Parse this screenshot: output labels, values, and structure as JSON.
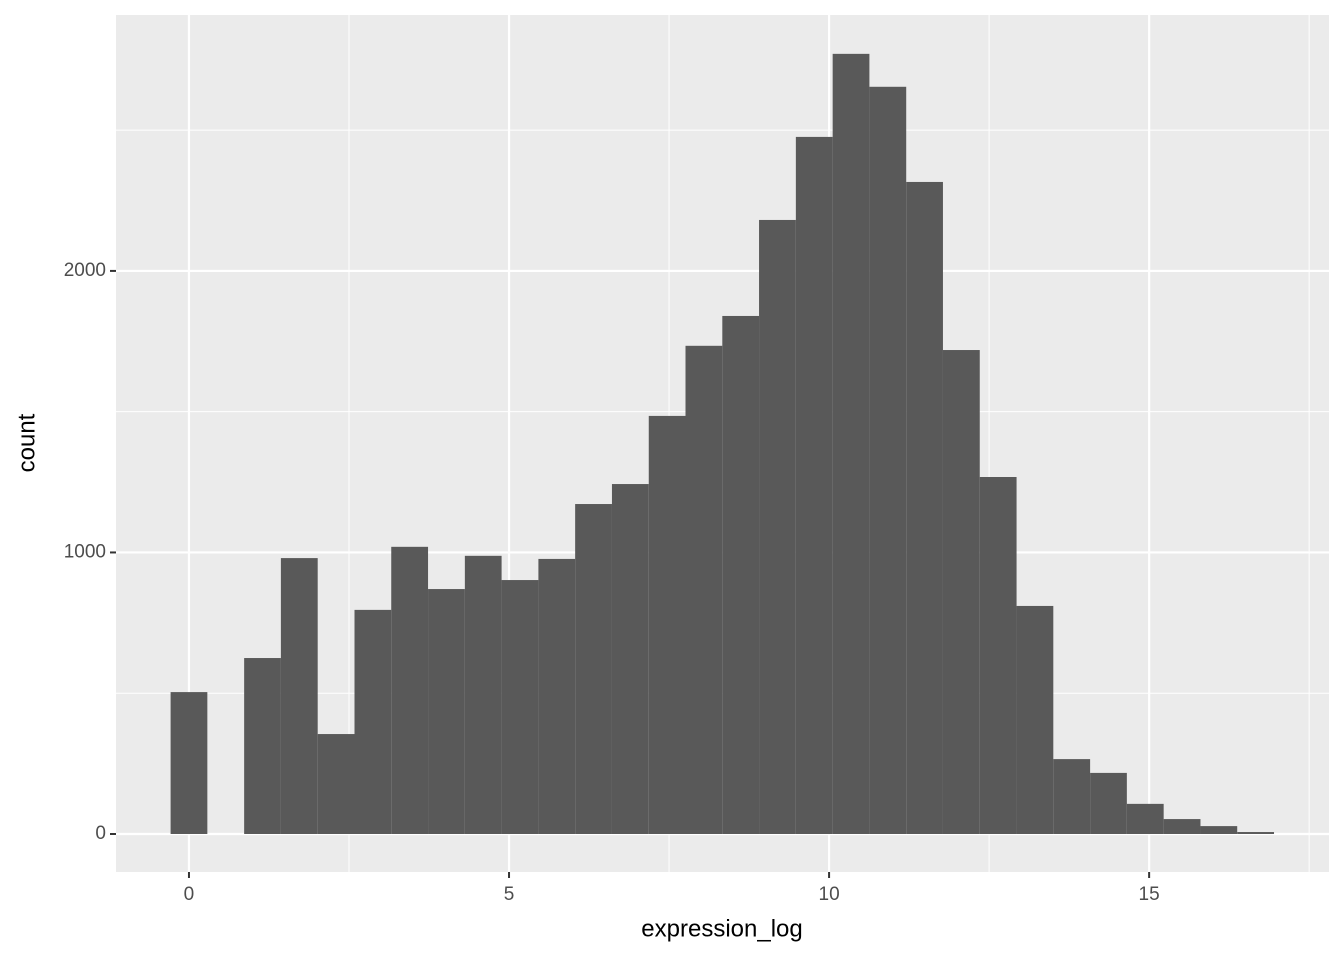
{
  "chart_data": {
    "type": "histogram",
    "x_label": "expression_log",
    "y_label": "count",
    "bins": [
      -0.287,
      0.287,
      0.862,
      1.436,
      2.011,
      2.586,
      3.16,
      3.735,
      4.31,
      4.884,
      5.459,
      6.033,
      6.608,
      7.183,
      7.757,
      8.332,
      8.906,
      9.481,
      10.056,
      10.63,
      11.205,
      11.779,
      12.354,
      12.929,
      13.503,
      14.078,
      14.652,
      15.227,
      15.802,
      16.376,
      16.951
    ],
    "counts": [
      504,
      0,
      625,
      980,
      355,
      796,
      1020,
      870,
      988,
      902,
      977,
      1172,
      1243,
      1485,
      1734,
      1840,
      2181,
      2476,
      2771,
      2654,
      2316,
      1719,
      1268,
      810,
      266,
      217,
      107,
      53,
      28,
      7
    ],
    "color": "#595959",
    "xlim": [
      -1.14,
      17.81
    ],
    "ylim": [
      -135,
      2909
    ],
    "xticks": [
      0,
      5,
      10,
      15
    ],
    "yticks": [
      0,
      1000,
      2000
    ],
    "minor_xticks": [
      2.5,
      7.5,
      12.5,
      17.5
    ],
    "minor_yticks": [
      500,
      1500,
      2500
    ],
    "grid": true
  }
}
